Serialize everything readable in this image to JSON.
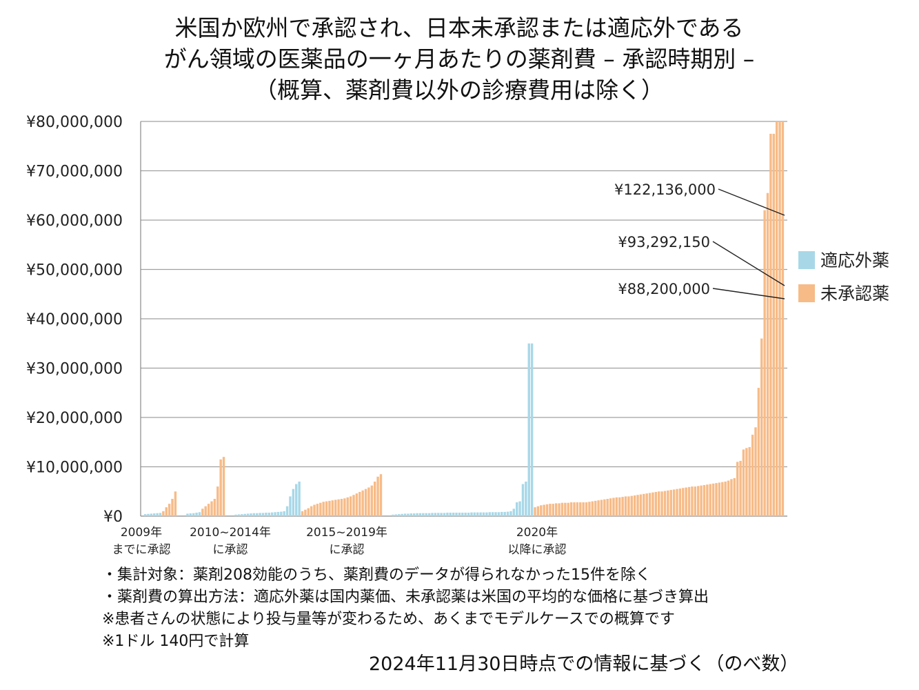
{
  "chart_data": {
    "type": "bar",
    "title": [
      "米国か欧州で承認され、日本未承認または適応外である",
      "がん領域の医薬品の一ヶ月あたりの薬剤費 – 承認時期別 –",
      "（概算、薬剤費以外の診療費用は除く）"
    ],
    "xlabel": "",
    "ylabel": "",
    "ylim": [
      0,
      80000000
    ],
    "yticks": [
      {
        "value": 0,
        "label": "¥0"
      },
      {
        "value": 10000000,
        "label": "¥10,000,000"
      },
      {
        "value": 20000000,
        "label": "¥20,000,000"
      },
      {
        "value": 30000000,
        "label": "¥30,000,000"
      },
      {
        "value": 40000000,
        "label": "¥40,000,000"
      },
      {
        "value": 50000000,
        "label": "¥50,000,000"
      },
      {
        "value": 60000000,
        "label": "¥60,000,000"
      },
      {
        "value": 70000000,
        "label": "¥70,000,000"
      },
      {
        "value": 80000000,
        "label": "¥80,000,000"
      }
    ],
    "grid": true,
    "legend_position": "right",
    "series_names": {
      "offlabel": "適応外薬",
      "unapproved": "未承認薬"
    },
    "colors": {
      "offlabel": "#a8d8e8",
      "unapproved": "#f7bb88"
    },
    "groups": [
      {
        "label": [
          "2009年",
          "までに承認"
        ],
        "offlabel": [
          400000,
          450000,
          500000,
          550000,
          600000,
          650000
        ],
        "unapproved": [
          1000000,
          1800000,
          2500000,
          3500000,
          5000000
        ]
      },
      {
        "label": [
          "2010~2014年",
          "に承認"
        ],
        "offlabel": [
          500000,
          550000,
          600000,
          700000,
          800000
        ],
        "unapproved": [
          1500000,
          2000000,
          2500000,
          3000000,
          3500000,
          6000000,
          11500000,
          12000000
        ]
      },
      {
        "label": [
          "2015~2019年",
          "に承認"
        ],
        "offlabel": [
          300000,
          350000,
          400000,
          450000,
          500000,
          550000,
          600000,
          600000,
          650000,
          650000,
          700000,
          700000,
          750000,
          800000,
          850000,
          900000,
          1000000,
          2000000,
          4000000,
          5500000,
          6500000,
          7000000
        ],
        "unapproved": [
          1000000,
          1300000,
          1600000,
          2000000,
          2300000,
          2500000,
          2700000,
          2900000,
          3000000,
          3100000,
          3200000,
          3300000,
          3400000,
          3500000,
          3600000,
          3800000,
          4000000,
          4300000,
          4600000,
          4900000,
          5200000,
          5500000,
          5800000,
          6200000,
          7000000,
          8000000,
          8500000
        ]
      },
      {
        "label": [
          "2020年",
          "以降に承認"
        ],
        "offlabel": [
          300000,
          350000,
          400000,
          450000,
          500000,
          500000,
          550000,
          550000,
          600000,
          600000,
          600000,
          600000,
          600000,
          650000,
          650000,
          650000,
          650000,
          650000,
          700000,
          700000,
          700000,
          700000,
          700000,
          700000,
          700000,
          700000,
          750000,
          750000,
          750000,
          750000,
          750000,
          750000,
          800000,
          800000,
          800000,
          800000,
          850000,
          850000,
          900000,
          1000000,
          1500000,
          2800000,
          3000000,
          6500000,
          7000000,
          35000000,
          35000000
        ],
        "unapproved": [
          1800000,
          2000000,
          2200000,
          2300000,
          2400000,
          2500000,
          2500000,
          2600000,
          2600000,
          2700000,
          2700000,
          2700000,
          2800000,
          2800000,
          2800000,
          2800000,
          2800000,
          2800000,
          2900000,
          3000000,
          3100000,
          3200000,
          3300000,
          3400000,
          3500000,
          3600000,
          3700000,
          3800000,
          3800000,
          3900000,
          4000000,
          4000000,
          4100000,
          4200000,
          4300000,
          4400000,
          4500000,
          4600000,
          4700000,
          4800000,
          4900000,
          5000000,
          5000000,
          5100000,
          5200000,
          5300000,
          5400000,
          5500000,
          5600000,
          5700000,
          5800000,
          5900000,
          6000000,
          6000000,
          6100000,
          6200000,
          6300000,
          6400000,
          6500000,
          6600000,
          6700000,
          6800000,
          6900000,
          7000000,
          7200000,
          7500000,
          7700000,
          11000000,
          11200000,
          13500000,
          13800000,
          14000000,
          16500000,
          18000000,
          26000000,
          36000000,
          62000000,
          65500000,
          77500000,
          77500000,
          88200000,
          93292150,
          122136000
        ]
      }
    ],
    "annotations": [
      {
        "label": "¥122,136,000",
        "value": 122136000
      },
      {
        "label": "¥93,292,150",
        "value": 93292150
      },
      {
        "label": "¥88,200,000",
        "value": 88200000
      }
    ]
  },
  "notes": [
    "・集計対象：薬剤208効能のうち、薬剤費のデータが得られなかった15件を除く",
    "・薬剤費の算出方法：適応外薬は国内薬価、未承認薬は米国の平均的な価格に基づき算出",
    "※患者さんの状態により投与量等が変わるため、あくまでモデルケースでの概算です",
    "※1ドル 140円で計算"
  ],
  "date_note": "2024年11月30日時点での情報に基づく（のべ数）"
}
